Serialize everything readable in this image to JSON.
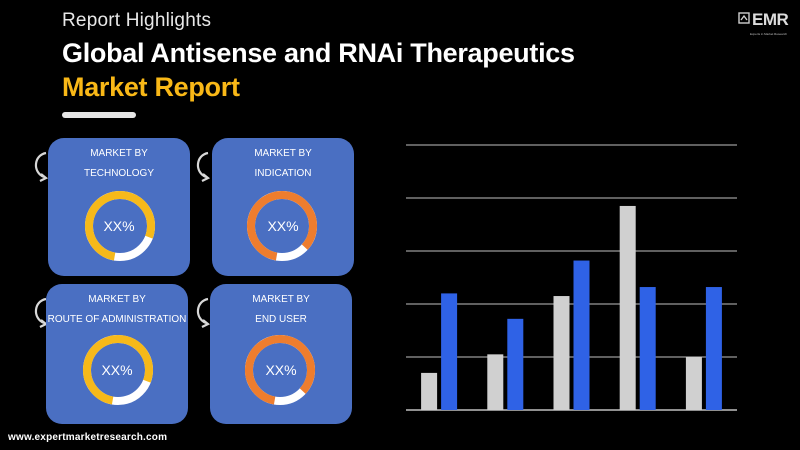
{
  "header": {
    "subtitle": "Report Highlights",
    "title_line1": "Global Antisense and RNAi Therapeutics",
    "title_line2": "Market Report"
  },
  "logo": {
    "text": "EMR",
    "tagline": "Experts in Market Research"
  },
  "cards": [
    {
      "label_line1": "MARKET BY",
      "label_line2": "TECHNOLOGY",
      "value": "XX%",
      "ring_color": "#f6b91a",
      "ring_fraction": 0.78
    },
    {
      "label_line1": "MARKET BY",
      "label_line2": "INDICATION",
      "value": "XX%",
      "ring_color": "#ee7d2e",
      "ring_fraction": 0.84
    },
    {
      "label_line1": "MARKET BY",
      "label_line2": "ROUTE OF ADMINISTRATION",
      "value": "XX%",
      "ring_color": "#f6b91a",
      "ring_fraction": 0.78
    },
    {
      "label_line1": "MARKET BY",
      "label_line2": "END USER",
      "value": "XX%",
      "ring_color": "#ee7d2e",
      "ring_fraction": 0.84
    }
  ],
  "footer": {
    "url": "www.expertmarketresearch.com"
  },
  "colors": {
    "title_accent": "#f9b817",
    "card_bg": "#4a6fc2",
    "bar_gray": "#d0d0d0",
    "bar_blue": "#2f62e6",
    "gridline": "#ffffff"
  },
  "chart_data": {
    "type": "bar",
    "categories": [
      "",
      "",
      "",
      "",
      ""
    ],
    "series": [
      {
        "values": [
          0.7,
          1.05,
          2.15,
          3.85,
          1.0
        ]
      },
      {
        "values": [
          2.2,
          1.72,
          2.82,
          2.32,
          2.32
        ]
      }
    ],
    "title": "",
    "xlabel": "",
    "ylabel": "",
    "ylim": [
      0,
      5
    ],
    "grid": true,
    "legend": "none"
  }
}
